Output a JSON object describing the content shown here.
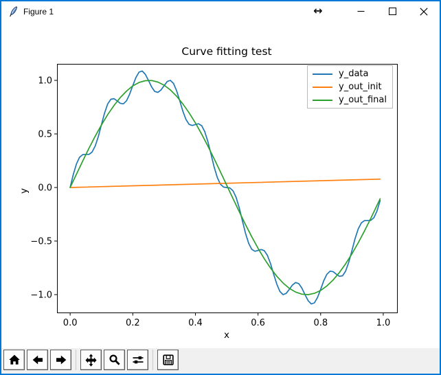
{
  "window": {
    "title": "Figure 1",
    "resize_cursor_glyph": "↔",
    "controls": [
      {
        "icon": "minimize-icon"
      },
      {
        "icon": "maximize-icon"
      },
      {
        "icon": "close-icon"
      }
    ]
  },
  "toolbar": {
    "buttons": [
      {
        "icon": "home-icon"
      },
      {
        "icon": "back-arrow-icon"
      },
      {
        "icon": "forward-arrow-icon"
      },
      {
        "icon": "pan-icon"
      },
      {
        "icon": "zoom-magnifier-icon"
      },
      {
        "icon": "configure-subplots-icon"
      },
      {
        "icon": "save-icon"
      }
    ]
  },
  "chart_data": {
    "type": "line",
    "title": "Curve fitting test",
    "xlabel": "x",
    "ylabel": "y",
    "xlim": [
      -0.042,
      1.044
    ],
    "ylim": [
      -1.167,
      1.154
    ],
    "grid": false,
    "legend_position": "upper right",
    "xticks": {
      "values": [
        0.0,
        0.2,
        0.4,
        0.6,
        0.8,
        1.0
      ],
      "labels": [
        "0.0",
        "0.2",
        "0.4",
        "0.6",
        "0.8",
        "1.0"
      ]
    },
    "yticks": {
      "values": [
        -1.0,
        -0.5,
        0.0,
        0.5,
        1.0
      ],
      "labels": [
        "−1.0",
        "−0.5",
        "0.0",
        "0.5",
        "1.0"
      ]
    },
    "series": [
      {
        "name": "y_data",
        "color": "#1f77b4",
        "x0": 0.0,
        "dx": 0.01,
        "y": [
          0.0,
          0.122,
          0.22,
          0.282,
          0.307,
          0.309,
          0.309,
          0.331,
          0.387,
          0.477,
          0.588,
          0.696,
          0.78,
          0.824,
          0.829,
          0.809,
          0.786,
          0.781,
          0.81,
          0.871,
          0.951,
          1.027,
          1.077,
          1.087,
          1.057,
          1.0,
          0.939,
          0.897,
          0.887,
          0.91,
          0.951,
          0.989,
          1.0,
          0.971,
          0.903,
          0.809,
          0.712,
          0.634,
          0.589,
          0.579,
          0.588,
          0.595,
          0.577,
          0.521,
          0.427,
          0.309,
          0.19,
          0.092,
          0.03,
          0.004,
          0.0,
          -0.004,
          -0.03,
          -0.092,
          -0.19,
          -0.309,
          -0.427,
          -0.521,
          -0.577,
          -0.595,
          -0.588,
          -0.579,
          -0.589,
          -0.634,
          -0.712,
          -0.809,
          -0.903,
          -0.971,
          -1.0,
          -0.989,
          -0.951,
          -0.91,
          -0.887,
          -0.897,
          -0.939,
          -1.0,
          -1.057,
          -1.087,
          -1.077,
          -1.027,
          -0.951,
          -0.871,
          -0.81,
          -0.781,
          -0.786,
          -0.809,
          -0.829,
          -0.824,
          -0.78,
          -0.696,
          -0.588,
          -0.477,
          -0.387,
          -0.331,
          -0.309,
          -0.309,
          -0.307,
          -0.282,
          -0.22,
          -0.122
        ]
      },
      {
        "name": "y_out_init",
        "color": "#ff7f0e",
        "x": [
          0.0,
          0.99
        ],
        "y": [
          0.0,
          0.078
        ]
      },
      {
        "name": "y_out_final",
        "color": "#2ca02c",
        "x": [
          0.0,
          0.02,
          0.04,
          0.06,
          0.08,
          0.1,
          0.12,
          0.14,
          0.16,
          0.18,
          0.2,
          0.22,
          0.24,
          0.26,
          0.28,
          0.3,
          0.32,
          0.34,
          0.36,
          0.38,
          0.4,
          0.42,
          0.44,
          0.46,
          0.48,
          0.5,
          0.52,
          0.54,
          0.56,
          0.58,
          0.6,
          0.62,
          0.64,
          0.66,
          0.68,
          0.7,
          0.72,
          0.74,
          0.76,
          0.78,
          0.8,
          0.82,
          0.84,
          0.86,
          0.88,
          0.9,
          0.92,
          0.94,
          0.96,
          0.98,
          0.99
        ],
        "y": [
          0.0,
          0.124,
          0.247,
          0.366,
          0.479,
          0.584,
          0.681,
          0.766,
          0.84,
          0.9,
          0.949,
          0.98,
          0.997,
          0.999,
          0.984,
          0.955,
          0.911,
          0.852,
          0.78,
          0.697,
          0.602,
          0.498,
          0.385,
          0.268,
          0.146,
          0.022,
          -0.103,
          -0.226,
          -0.346,
          -0.46,
          -0.567,
          -0.665,
          -0.753,
          -0.829,
          -0.892,
          -0.942,
          -0.976,
          -0.996,
          -1.0,
          -0.988,
          -0.961,
          -0.919,
          -0.863,
          -0.794,
          -0.712,
          -0.619,
          -0.516,
          -0.406,
          -0.289,
          -0.167,
          -0.105
        ]
      }
    ]
  }
}
